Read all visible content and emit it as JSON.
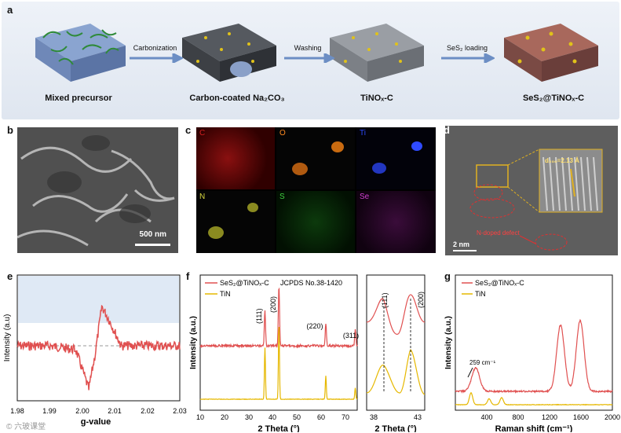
{
  "panel_a": {
    "label": "a",
    "stages": [
      "Mixed precursor",
      "Carbon-coated Na₂CO₃",
      "TiNOₓ-C",
      "SeS₂@TiNOₓ-C"
    ],
    "arrows": [
      "Carbonization",
      "Washing",
      "SeS₂ loading"
    ]
  },
  "panel_b": {
    "label": "b",
    "scale_bar": "500 nm"
  },
  "panel_c": {
    "label": "c",
    "maps": [
      {
        "element": "C",
        "color": "#d42020"
      },
      {
        "element": "O",
        "color": "#ff8a20"
      },
      {
        "element": "Ti",
        "color": "#2f4bff"
      },
      {
        "element": "N",
        "color": "#d6d640"
      },
      {
        "element": "S",
        "color": "#40d040"
      },
      {
        "element": "Se",
        "color": "#d040d0"
      }
    ]
  },
  "panel_d": {
    "label": "d",
    "d_spacing": "d₂₀₀=2.13 Å",
    "annotation": "N-doped defect",
    "scale_bar": "2 nm"
  },
  "chart_data": [
    {
      "panel": "e",
      "type": "line",
      "xlabel": "g-value",
      "ylabel": "Intensity (a.u)",
      "xlim": [
        1.98,
        2.03
      ],
      "xticks": [
        "1.98",
        "1.99",
        "2.00",
        "2.01",
        "2.02",
        "2.03"
      ],
      "series": [
        {
          "x": [
            1.98,
            1.99,
            1.998,
            2.0,
            2.002,
            2.004,
            2.006,
            2.008,
            2.012,
            2.02,
            2.03
          ],
          "y": [
            0.0,
            0.0,
            -0.05,
            -0.3,
            -0.55,
            -0.1,
            0.5,
            0.35,
            0.0,
            0.0,
            0.0
          ],
          "color": "#e05050"
        }
      ],
      "baseline": 0
    },
    {
      "panel": "f",
      "type": "line",
      "xlabel": "2 Theta (°)",
      "ylabel": "Intensity (a.u.)",
      "xlim": [
        10,
        75
      ],
      "xticks": [
        "10",
        "20",
        "30",
        "40",
        "50",
        "60",
        "70"
      ],
      "series": [
        {
          "name": "SeS₂@TiNOₓ-C",
          "color": "#e05050",
          "peaks": [
            {
              "x": 36.8,
              "h": 0.55
            },
            {
              "x": 42.6,
              "h": 0.95
            },
            {
              "x": 62.0,
              "h": 0.35
            },
            {
              "x": 74.2,
              "h": 0.25
            }
          ]
        },
        {
          "name": "TiN",
          "color": "#e6b800",
          "peaks": [
            {
              "x": 36.8,
              "h": 0.55
            },
            {
              "x": 42.6,
              "h": 0.8
            },
            {
              "x": 62.0,
              "h": 0.25
            },
            {
              "x": 74.2,
              "h": 0.12
            }
          ]
        }
      ],
      "annotations": [
        "JCPDS No.38-1420",
        "(111)",
        "(200)",
        "(220)",
        "(311)"
      ]
    },
    {
      "panel": "f-inset",
      "type": "line",
      "xlabel": "2 Theta (°)",
      "xticks": [
        "38",
        "43"
      ],
      "annotations": [
        "(111)",
        "(200)"
      ]
    },
    {
      "panel": "g",
      "type": "line",
      "xlabel": "Raman shift (cm⁻¹)",
      "ylabel": "Intensity (a.u.)",
      "xlim": [
        0,
        2000
      ],
      "xticks": [
        "400",
        "800",
        "1200",
        "1600",
        "2000"
      ],
      "series": [
        {
          "name": "SeS₂@TiNOₓ-C",
          "color": "#e05050",
          "peaks": [
            {
              "x": 259,
              "h": 0.25
            },
            {
              "x": 1340,
              "h": 0.7
            },
            {
              "x": 1590,
              "h": 0.75
            }
          ]
        },
        {
          "name": "TiN",
          "color": "#e6b800",
          "peaks": [
            {
              "x": 200,
              "h": 0.3
            },
            {
              "x": 430,
              "h": 0.15
            },
            {
              "x": 590,
              "h": 0.18
            }
          ]
        }
      ],
      "annotations": [
        "259 cm⁻¹"
      ]
    }
  ],
  "watermark": "© 六玻课堂"
}
